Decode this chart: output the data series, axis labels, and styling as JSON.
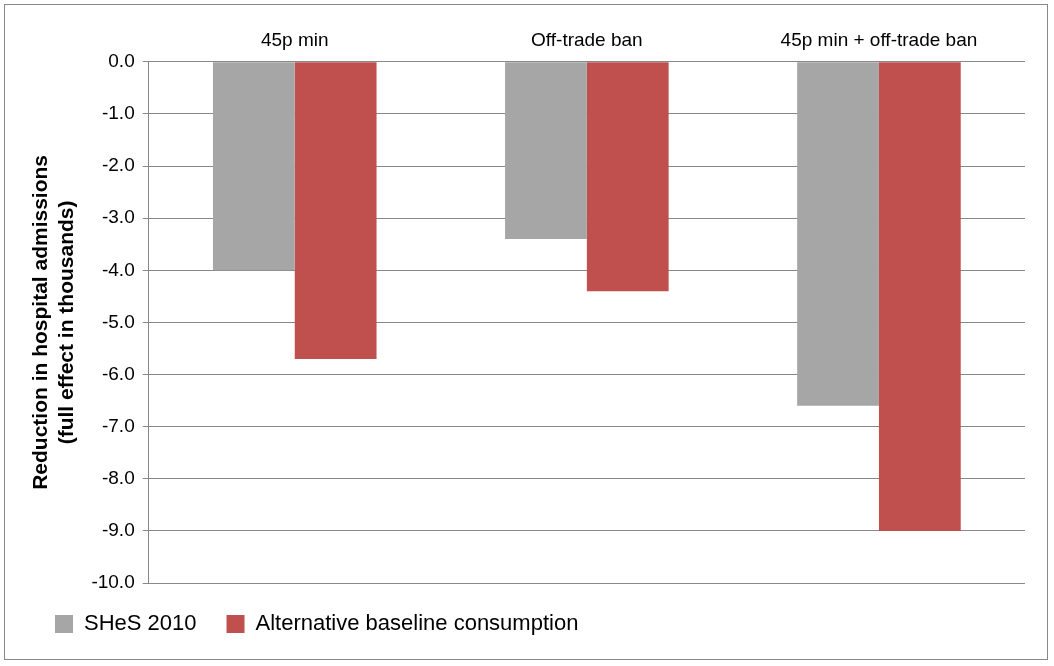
{
  "chart_data": {
    "type": "bar",
    "ylabel": "Reduction in hospital admissions (full effect in thousands)",
    "categories": [
      "45p min",
      "Off-trade ban",
      "45p min + off-trade ban"
    ],
    "series": [
      {
        "name": "SHeS 2010",
        "color": "#a6a6a6",
        "values": [
          -4.0,
          -3.4,
          -6.6
        ]
      },
      {
        "name": "Alternative baseline consumption",
        "color": "#c0504d",
        "values": [
          -5.7,
          -4.4,
          -9.0
        ]
      }
    ],
    "ylim": [
      -10,
      0
    ],
    "yticks": [
      {
        "value": 0,
        "label": "0.0"
      },
      {
        "value": -1,
        "label": "-1.0"
      },
      {
        "value": -2,
        "label": "-2.0"
      },
      {
        "value": -3,
        "label": "-3.0"
      },
      {
        "value": -4,
        "label": "-4.0"
      },
      {
        "value": -5,
        "label": "-5.0"
      },
      {
        "value": -6,
        "label": "-6.0"
      },
      {
        "value": -7,
        "label": "-7.0"
      },
      {
        "value": -8,
        "label": "-8.0"
      },
      {
        "value": -9,
        "label": "-9.0"
      },
      {
        "value": -10,
        "label": "-10.0"
      }
    ],
    "grid": "y",
    "legend": "bottom left"
  }
}
